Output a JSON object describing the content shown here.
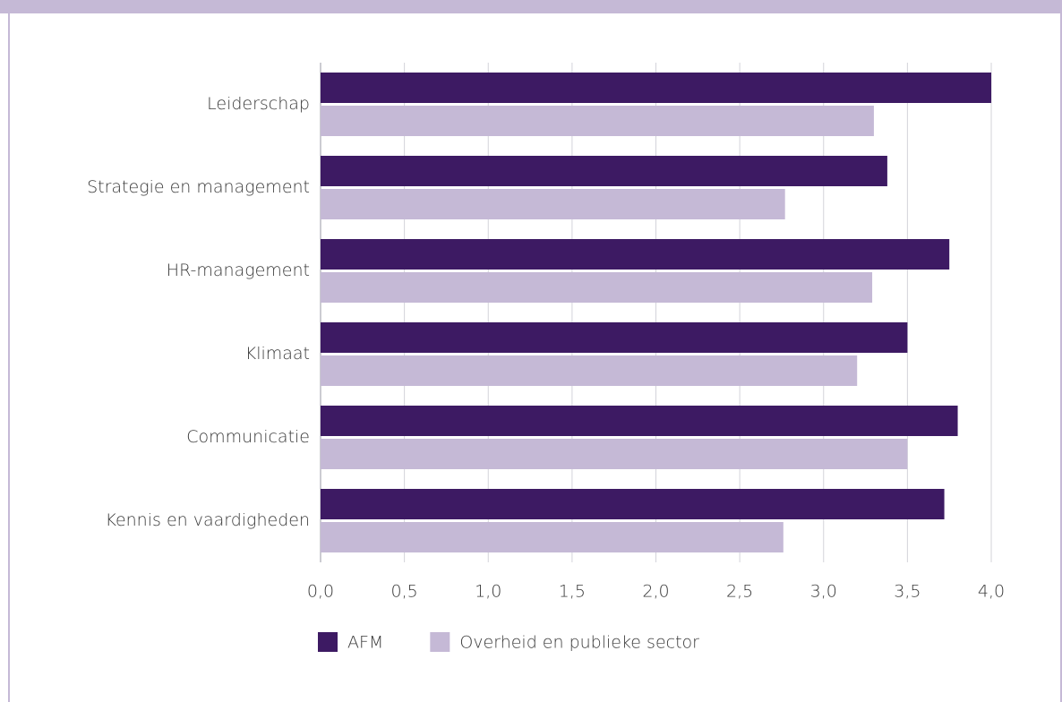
{
  "chart_data": {
    "type": "bar",
    "orientation": "horizontal",
    "categories": [
      "Leiderschap",
      "Strategie en management",
      "HR-management",
      "Klimaat",
      "Communicatie",
      "Kennis en vaardigheden"
    ],
    "series": [
      {
        "name": "AFM",
        "color": "#3d1a63",
        "values": [
          4.0,
          3.38,
          3.75,
          3.5,
          3.8,
          3.72
        ]
      },
      {
        "name": "Overheid en publieke sector",
        "color": "#c5b9d6",
        "values": [
          3.3,
          2.77,
          3.29,
          3.2,
          3.5,
          2.76
        ]
      }
    ],
    "xlim": [
      0,
      4.0
    ],
    "xticks": [
      {
        "value": 0,
        "label": "0,0"
      },
      {
        "value": 0.5,
        "label": "0,5"
      },
      {
        "value": 1.0,
        "label": "1,0"
      },
      {
        "value": 1.5,
        "label": "1,5"
      },
      {
        "value": 2.0,
        "label": "2,0"
      },
      {
        "value": 2.5,
        "label": "2,5"
      },
      {
        "value": 3.0,
        "label": "3,0"
      },
      {
        "value": 3.5,
        "label": "3,5"
      },
      {
        "value": 4.0,
        "label": "4,0"
      }
    ],
    "grid": true,
    "legend": "bottom"
  }
}
